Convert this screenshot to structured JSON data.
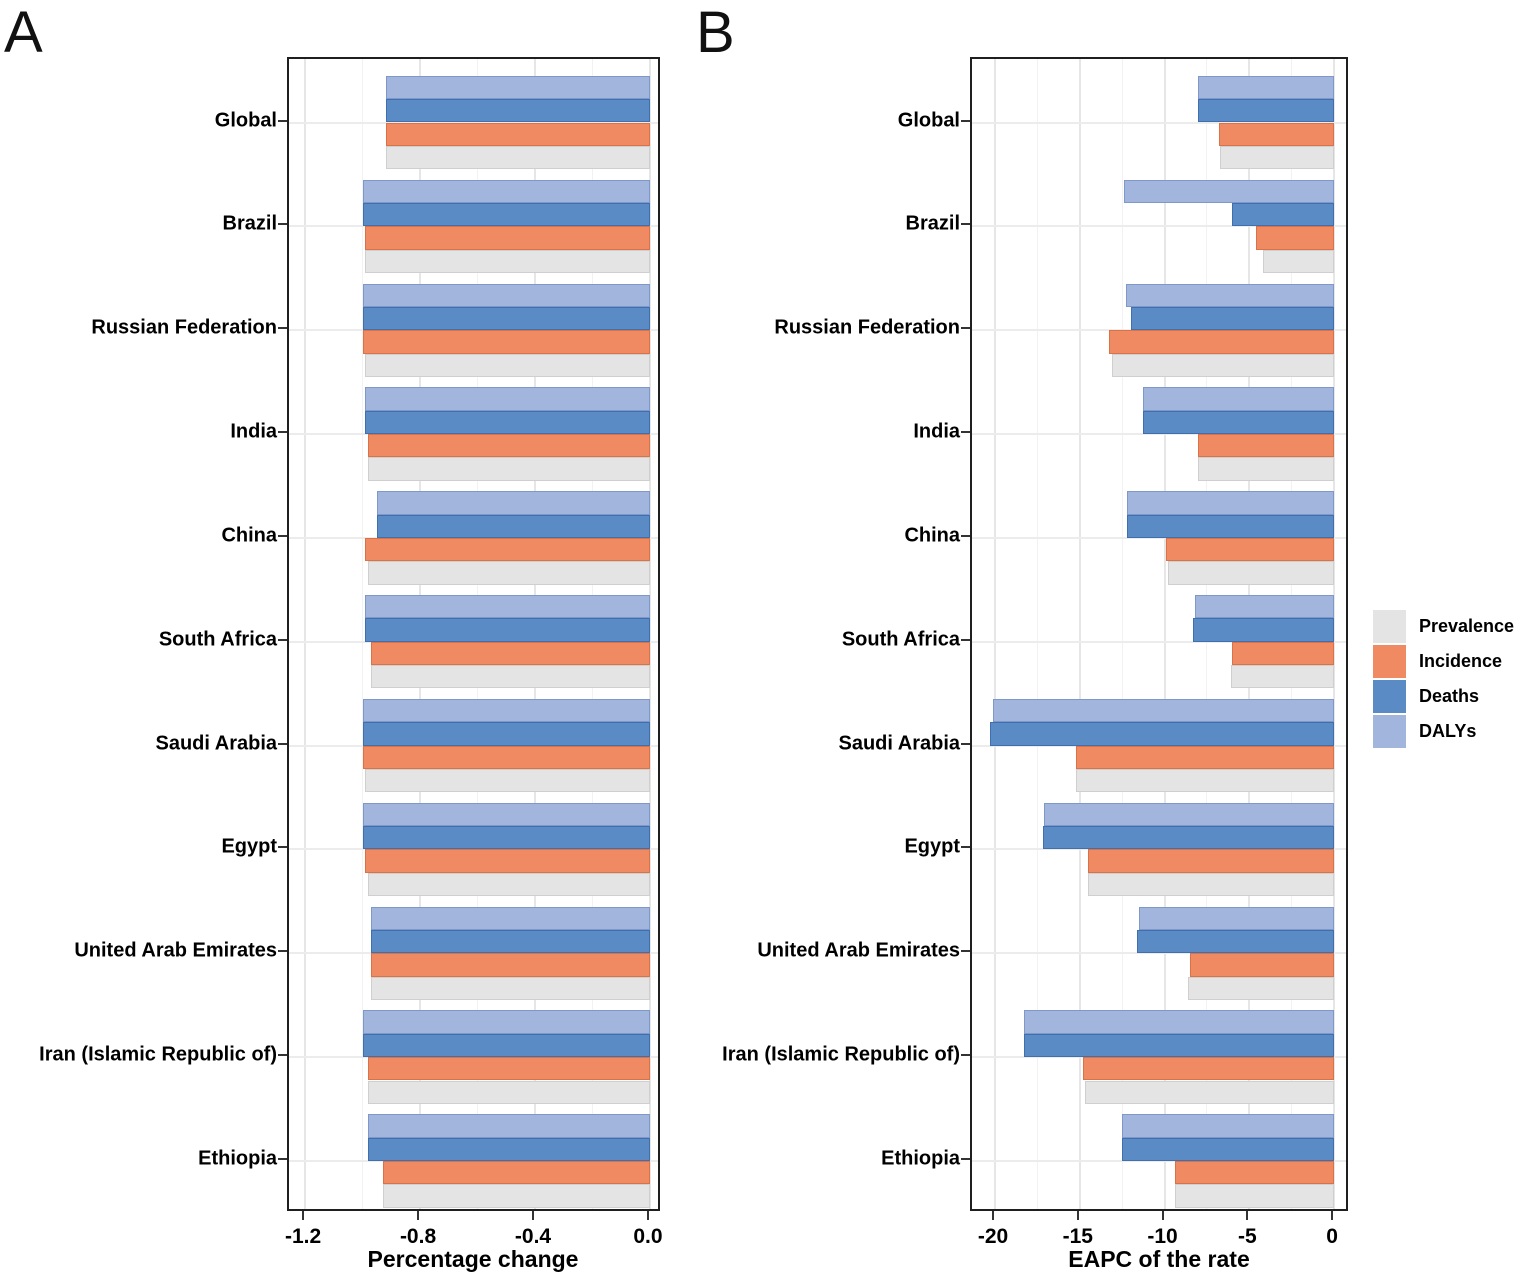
{
  "figure": {
    "panel_a_label": "A",
    "panel_b_label": "B",
    "legend": {
      "items": [
        {
          "label": "Prevalence",
          "color": "#e4e4e4"
        },
        {
          "label": "Incidence",
          "color": "#ef8a63"
        },
        {
          "label": "Deaths",
          "color": "#5b8bc4"
        },
        {
          "label": "DALYs",
          "color": "#a2b5dd"
        }
      ]
    }
  },
  "chart_data": [
    {
      "type": "bar",
      "orientation": "horizontal",
      "panel": "A",
      "xlabel": "Percentage change",
      "xlim": [
        -1.256,
        0.042
      ],
      "xticks": [
        -1.2,
        -0.8,
        -0.4,
        0.0
      ],
      "xtick_labels": [
        "-1.2",
        "-0.8",
        "-0.4",
        "0.0"
      ],
      "minor_ticks": [
        -1.0,
        -0.6,
        -0.2
      ],
      "grid": true,
      "legend_position": "none",
      "categories": [
        "Global",
        "Brazil",
        "Russian Federation",
        "India",
        "China",
        "South Africa",
        "Saudi Arabia",
        "Egypt",
        "United Arab Emirates",
        "Iran (Islamic Republic of)",
        "Ethiopia"
      ],
      "series": [
        {
          "name": "Prevalence",
          "color": "#e4e4e4",
          "border": "#cfcfcf",
          "values": [
            -0.92,
            -0.99,
            -0.99,
            -0.98,
            -0.98,
            -0.97,
            -0.99,
            -0.98,
            -0.97,
            -0.98,
            -0.93
          ]
        },
        {
          "name": "Incidence",
          "color": "#ef8a63",
          "border": "#d97347",
          "values": [
            -0.92,
            -0.99,
            -1.0,
            -0.98,
            -0.99,
            -0.97,
            -1.0,
            -0.99,
            -0.97,
            -0.98,
            -0.93
          ]
        },
        {
          "name": "Deaths",
          "color": "#5b8bc4",
          "border": "#3f6fae",
          "values": [
            -0.92,
            -1.0,
            -1.0,
            -0.99,
            -0.95,
            -0.99,
            -1.0,
            -1.0,
            -0.97,
            -1.0,
            -0.98
          ]
        },
        {
          "name": "DALYs",
          "color": "#a2b5dd",
          "border": "#7f97c9",
          "values": [
            -0.92,
            -1.0,
            -1.0,
            -0.99,
            -0.95,
            -0.99,
            -1.0,
            -1.0,
            -0.97,
            -1.0,
            -0.98
          ]
        }
      ]
    },
    {
      "type": "bar",
      "orientation": "horizontal",
      "panel": "B",
      "xlabel": "EAPC of the rate",
      "xlim": [
        -21.36,
        0.94
      ],
      "xticks": [
        -20,
        -15,
        -10,
        -5,
        0
      ],
      "xtick_labels": [
        "-20",
        "-15",
        "-10",
        "-5",
        "0"
      ],
      "minor_ticks": [
        -17.5,
        -12.5,
        -7.5,
        -2.5
      ],
      "grid": true,
      "legend_position": "right",
      "categories": [
        "Global",
        "Brazil",
        "Russian Federation",
        "India",
        "China",
        "South Africa",
        "Saudi Arabia",
        "Egypt",
        "United Arab Emirates",
        "Iran (Islamic Republic of)",
        "Ethiopia"
      ],
      "series": [
        {
          "name": "Prevalence",
          "color": "#e4e4e4",
          "border": "#cfcfcf",
          "values": [
            -6.7,
            -4.2,
            -13.1,
            -8.0,
            -9.8,
            -6.1,
            -15.2,
            -14.5,
            -8.6,
            -14.7,
            -9.4
          ]
        },
        {
          "name": "Incidence",
          "color": "#ef8a63",
          "border": "#d97347",
          "values": [
            -6.8,
            -4.6,
            -13.3,
            -8.0,
            -9.9,
            -6.0,
            -15.2,
            -14.5,
            -8.5,
            -14.8,
            -9.4
          ]
        },
        {
          "name": "Deaths",
          "color": "#5b8bc4",
          "border": "#3f6fae",
          "values": [
            -8.0,
            -6.0,
            -12.0,
            -11.3,
            -12.2,
            -8.3,
            -20.3,
            -17.2,
            -11.6,
            -18.3,
            -12.5
          ]
        },
        {
          "name": "DALYs",
          "color": "#a2b5dd",
          "border": "#7f97c9",
          "values": [
            -8.0,
            -12.4,
            -12.3,
            -11.3,
            -12.2,
            -8.2,
            -20.1,
            -17.1,
            -11.5,
            -18.3,
            -12.5
          ]
        }
      ]
    }
  ]
}
